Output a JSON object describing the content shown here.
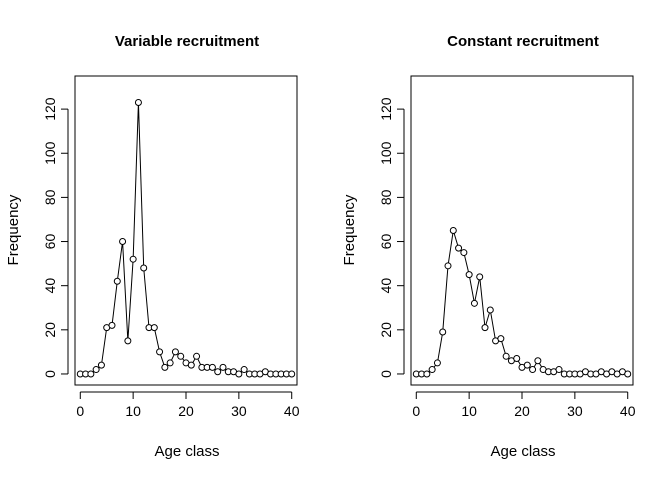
{
  "chart_data": [
    {
      "type": "line",
      "title": "Variable recruitment",
      "xlabel": "Age class",
      "ylabel": "Frequency",
      "xlim": [
        -1,
        41
      ],
      "ylim": [
        -5,
        135
      ],
      "x_ticks": [
        0,
        10,
        20,
        30,
        40
      ],
      "y_ticks": [
        0,
        20,
        40,
        60,
        80,
        100,
        120
      ],
      "grid": false,
      "x": [
        0,
        1,
        2,
        3,
        4,
        5,
        6,
        7,
        8,
        9,
        10,
        11,
        12,
        13,
        14,
        15,
        16,
        17,
        18,
        19,
        20,
        21,
        22,
        23,
        24,
        25,
        26,
        27,
        28,
        29,
        30,
        31,
        32,
        33,
        34,
        35,
        36,
        37,
        38,
        39,
        40
      ],
      "values": [
        0,
        0,
        0,
        2,
        4,
        21,
        22,
        42,
        60,
        15,
        52,
        123,
        48,
        21,
        21,
        10,
        3,
        5,
        10,
        8,
        5,
        4,
        8,
        3,
        3,
        3,
        1,
        3,
        1,
        1,
        0,
        2,
        0,
        0,
        0,
        1,
        0,
        0,
        0,
        0,
        0
      ]
    },
    {
      "type": "line",
      "title": "Constant recruitment",
      "xlabel": "Age class",
      "ylabel": "Frequency",
      "xlim": [
        -1,
        41
      ],
      "ylim": [
        -5,
        135
      ],
      "x_ticks": [
        0,
        10,
        20,
        30,
        40
      ],
      "y_ticks": [
        0,
        20,
        40,
        60,
        80,
        100,
        120
      ],
      "grid": false,
      "x": [
        0,
        1,
        2,
        3,
        4,
        5,
        6,
        7,
        8,
        9,
        10,
        11,
        12,
        13,
        14,
        15,
        16,
        17,
        18,
        19,
        20,
        21,
        22,
        23,
        24,
        25,
        26,
        27,
        28,
        29,
        30,
        31,
        32,
        33,
        34,
        35,
        36,
        37,
        38,
        39,
        40
      ],
      "values": [
        0,
        0,
        0,
        2,
        5,
        19,
        49,
        65,
        57,
        55,
        45,
        32,
        44,
        21,
        29,
        15,
        16,
        8,
        6,
        7,
        3,
        4,
        2,
        6,
        2,
        1,
        1,
        2,
        0,
        0,
        0,
        0,
        1,
        0,
        0,
        1,
        0,
        1,
        0,
        1,
        0
      ]
    }
  ]
}
